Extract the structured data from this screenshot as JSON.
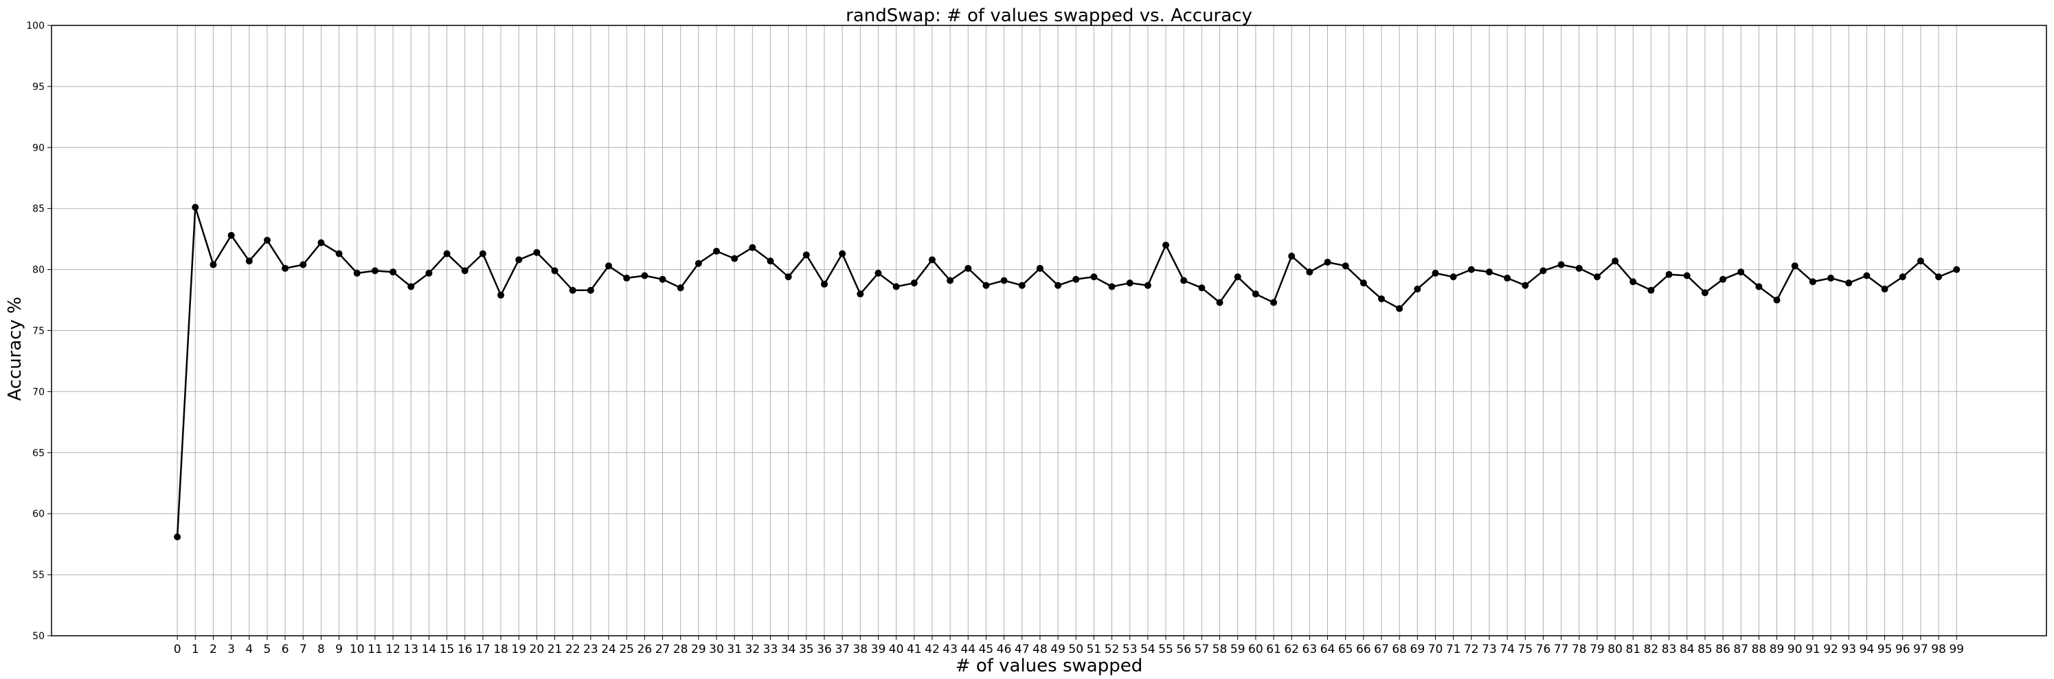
{
  "chart_data": {
    "type": "line",
    "title": "randSwap: # of values swapped vs. Accuracy",
    "xlabel": "# of values swapped",
    "ylabel": "Accuracy %",
    "ylim": [
      50,
      100
    ],
    "xlim": [
      -7,
      104
    ],
    "yticks": [
      50,
      55,
      60,
      65,
      70,
      75,
      80,
      85,
      90,
      95,
      100
    ],
    "grid": true,
    "line_color": "#000000",
    "grid_color": "#b0b0b0",
    "series": [
      {
        "x": [
          0,
          1,
          2,
          3,
          4,
          5,
          6,
          7,
          8,
          9,
          10,
          11,
          12,
          13,
          14,
          15,
          16,
          17,
          18,
          19,
          20,
          21,
          22,
          23,
          24,
          25,
          26,
          27,
          28,
          29,
          30,
          31,
          32,
          33,
          34,
          35,
          36,
          37,
          38,
          39,
          40,
          41,
          42,
          43,
          44,
          45,
          46,
          47,
          48,
          49,
          50,
          51,
          52,
          53,
          54,
          55,
          56,
          57,
          58,
          59,
          60,
          61,
          62,
          63,
          64,
          65,
          66,
          67,
          68,
          69,
          70,
          71,
          72,
          73,
          74,
          75,
          76,
          77,
          78,
          79,
          80,
          81,
          82,
          83,
          84,
          85,
          86,
          87,
          88,
          89,
          90,
          91,
          92,
          93,
          94,
          95,
          96,
          97,
          98,
          99
        ],
        "values": [
          58.1,
          85.1,
          80.4,
          82.8,
          80.7,
          82.4,
          80.1,
          80.4,
          82.2,
          81.3,
          79.7,
          79.9,
          79.8,
          78.6,
          79.7,
          81.3,
          79.9,
          81.3,
          77.9,
          80.8,
          81.4,
          79.9,
          78.3,
          78.3,
          80.3,
          79.3,
          79.5,
          79.2,
          78.5,
          80.5,
          81.5,
          80.9,
          81.8,
          80.7,
          79.4,
          81.2,
          78.8,
          81.3,
          78.0,
          79.7,
          78.6,
          78.9,
          80.8,
          79.1,
          80.1,
          78.7,
          79.1,
          78.7,
          80.1,
          78.7,
          79.2,
          79.4,
          78.6,
          78.9,
          78.7,
          82.0,
          79.1,
          78.5,
          77.3,
          79.4,
          78.0,
          77.3,
          81.1,
          79.8,
          80.6,
          80.3,
          78.9,
          77.6,
          76.8,
          78.4,
          79.7,
          79.4,
          80.0,
          79.8,
          79.3,
          78.7,
          79.9,
          80.4,
          80.1,
          79.4,
          80.7,
          79.0,
          78.3,
          79.6,
          79.5,
          78.1,
          79.2,
          79.8,
          78.6,
          77.5,
          80.3,
          79.0,
          79.3,
          78.9,
          79.5,
          78.4,
          79.4,
          80.7,
          79.4,
          80.0
        ]
      }
    ]
  }
}
